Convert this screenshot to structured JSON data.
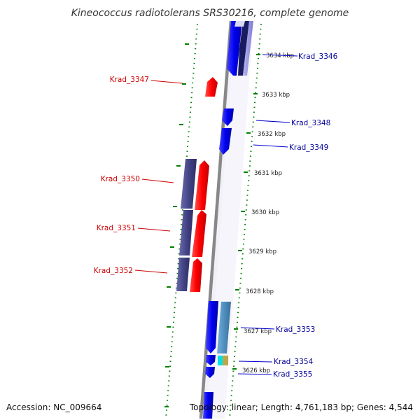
{
  "header": {
    "title": "Kineococcus radiotolerans SRS30216, complete genome"
  },
  "footer": {
    "accession": "Accession: NC_009664",
    "summary": "Topology: linear; Length: 4,761,183 bp; Genes: 4,544"
  },
  "colors": {
    "forward_gene": "#ff0000",
    "reverse_gene": "#0000ff",
    "cds_reverse": "#444488",
    "cds_teal": "#4f8fc0",
    "forward_label": "#cc0000",
    "reverse_label": "#000099",
    "ticks": "#008000",
    "backbone": "#888888"
  },
  "ticks": [
    "3634 kbp",
    "3633 kbp",
    "3632 kbp",
    "3631 kbp",
    "3630 kbp",
    "3629 kbp",
    "3628 kbp",
    "3627 kbp",
    "3626 kbp"
  ],
  "genes": [
    {
      "label": "Krad_3346",
      "strand": "reverse"
    },
    {
      "label": "Krad_3347",
      "strand": "forward"
    },
    {
      "label": "Krad_3348",
      "strand": "reverse"
    },
    {
      "label": "Krad_3349",
      "strand": "reverse"
    },
    {
      "label": "Krad_3350",
      "strand": "forward"
    },
    {
      "label": "Krad_3351",
      "strand": "forward"
    },
    {
      "label": "Krad_3352",
      "strand": "forward"
    },
    {
      "label": "Krad_3353",
      "strand": "reverse"
    },
    {
      "label": "Krad_3354",
      "strand": "reverse"
    },
    {
      "label": "Krad_3355",
      "strand": "reverse"
    }
  ]
}
